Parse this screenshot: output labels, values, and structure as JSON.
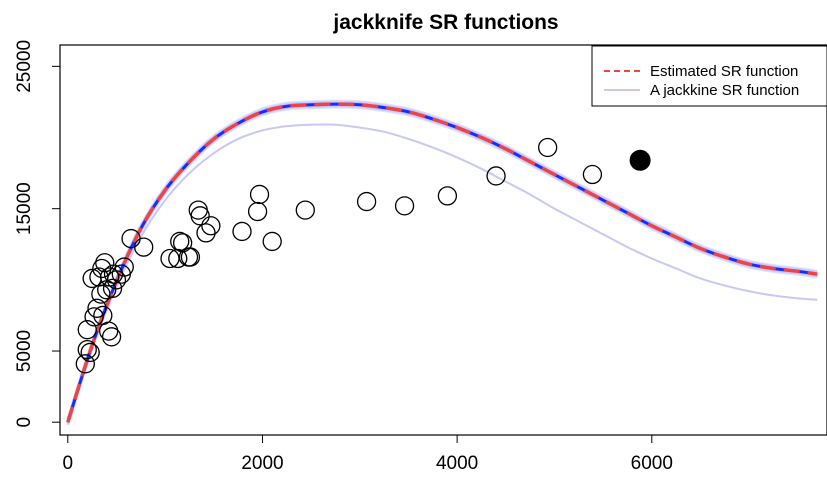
{
  "chart_data": {
    "type": "scatter",
    "title": "jackknife SR functions",
    "xlabel": "",
    "ylabel": "",
    "xlim": [
      -80,
      7800
    ],
    "ylim": [
      -900,
      26500
    ],
    "xticks": [
      0,
      2000,
      4000,
      6000
    ],
    "yticks": [
      0,
      5000,
      15000,
      25000
    ],
    "grid": false,
    "legend": {
      "placement": "top-right",
      "entries": [
        {
          "label": "Estimated SR function",
          "color": "#ee4444",
          "style": "dashed"
        },
        {
          "label": "A jackkine SR function",
          "color": "#c8c8f5",
          "style": "solid"
        }
      ]
    },
    "points": {
      "x": [
        180,
        200,
        230,
        200,
        270,
        250,
        300,
        320,
        350,
        340,
        380,
        360,
        400,
        420,
        450,
        460,
        430,
        470,
        500,
        550,
        580,
        650,
        780,
        1050,
        1130,
        1150,
        1180,
        1240,
        1260,
        1340,
        1360,
        1420,
        1470,
        1790,
        1950,
        1970,
        2100,
        2440,
        3070,
        3460,
        3900,
        4400,
        4930,
        5390
      ],
      "y": [
        4100,
        5100,
        4900,
        6500,
        7400,
        10100,
        8000,
        10200,
        10800,
        9000,
        11200,
        7500,
        9300,
        6400,
        6000,
        9400,
        10200,
        10400,
        10000,
        10400,
        10900,
        12900,
        12300,
        11500,
        11500,
        12700,
        12600,
        11600,
        11600,
        14900,
        14500,
        13300,
        13800,
        13400,
        14800,
        16000,
        12700,
        14900,
        15500,
        15200,
        15900,
        17300,
        19300,
        17400
      ]
    },
    "highlight_point": {
      "x": 5880,
      "y": 18400
    },
    "series": [
      {
        "name": "Estimated SR function",
        "color": "#ee4444",
        "x": [
          0,
          250,
          500,
          750,
          1000,
          1250,
          1500,
          1750,
          2000,
          2250,
          2500,
          2750,
          3000,
          3250,
          3500,
          3750,
          4000,
          4250,
          4500,
          4750,
          5000,
          5250,
          5500,
          5750,
          6000,
          6250,
          6500,
          6750,
          7000,
          7250,
          7500,
          7700
        ],
        "y": [
          0,
          5400,
          9900,
          13600,
          16300,
          18300,
          19900,
          21000,
          21800,
          22200,
          22300,
          22350,
          22300,
          22100,
          21800,
          21300,
          20700,
          20000,
          19200,
          18300,
          17400,
          16500,
          15600,
          14700,
          13800,
          13000,
          12200,
          11600,
          11100,
          10800,
          10600,
          10400
        ]
      },
      {
        "name": "A jackkine SR function",
        "color": "#c8c8f5",
        "x": [
          0,
          250,
          500,
          750,
          1000,
          1250,
          1500,
          1750,
          2000,
          2250,
          2500,
          2750,
          3000,
          3250,
          3500,
          3750,
          4000,
          4250,
          4500,
          4750,
          5000,
          5250,
          5500,
          5750,
          6000,
          6250,
          6500,
          6750,
          7000,
          7250,
          7500,
          7700
        ],
        "y": [
          0,
          5200,
          9500,
          13000,
          15600,
          17500,
          18900,
          19900,
          20500,
          20800,
          20900,
          20900,
          20700,
          20400,
          19900,
          19300,
          18600,
          17800,
          16900,
          16000,
          15000,
          14100,
          13200,
          12300,
          11500,
          10800,
          10100,
          9600,
          9200,
          8900,
          8700,
          8600
        ]
      }
    ]
  }
}
